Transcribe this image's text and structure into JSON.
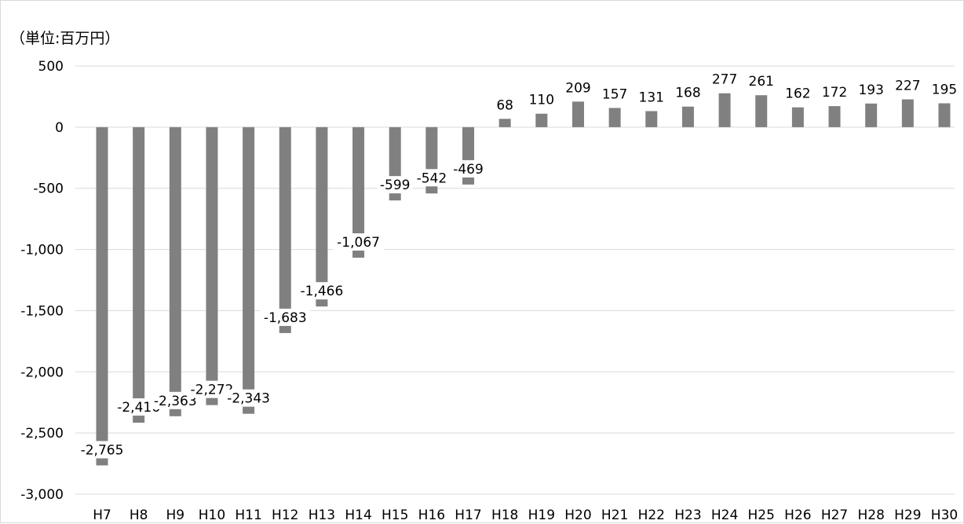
{
  "chart_data": {
    "type": "bar",
    "unit_label": "（単位:百万円）",
    "categories": [
      "H7",
      "H8",
      "H9",
      "H10",
      "H11",
      "H12",
      "H13",
      "H14",
      "H15",
      "H16",
      "H17",
      "H18",
      "H19",
      "H20",
      "H21",
      "H22",
      "H23",
      "H24",
      "H25",
      "H26",
      "H27",
      "H28",
      "H29",
      "H30"
    ],
    "values": [
      -2765,
      -2416,
      -2363,
      -2272,
      -2343,
      -1683,
      -1466,
      -1067,
      -599,
      -542,
      -469,
      68,
      110,
      209,
      157,
      131,
      168,
      277,
      261,
      162,
      172,
      193,
      227,
      195
    ],
    "data_labels": [
      "-2,765",
      "-2,416",
      "-2,363",
      "-2,272",
      "-2,343",
      "-1,683",
      "-1,466",
      "-1,067",
      "-599",
      "-542",
      "-469",
      "68",
      "110",
      "209",
      "157",
      "131",
      "168",
      "277",
      "261",
      "162",
      "172",
      "193",
      "227",
      "195"
    ],
    "y_ticks": [
      500,
      0,
      -500,
      -1000,
      -1500,
      -2000,
      -2500,
      -3000
    ],
    "y_tick_labels": [
      "500",
      "0",
      "-500",
      "-1,000",
      "-1,500",
      "-2,000",
      "-2,500",
      "-3,000"
    ],
    "ylim": [
      -3000,
      500
    ],
    "grid": true,
    "bar_color": "#808080",
    "grid_color": "#d9d9d9",
    "legend": "none"
  }
}
